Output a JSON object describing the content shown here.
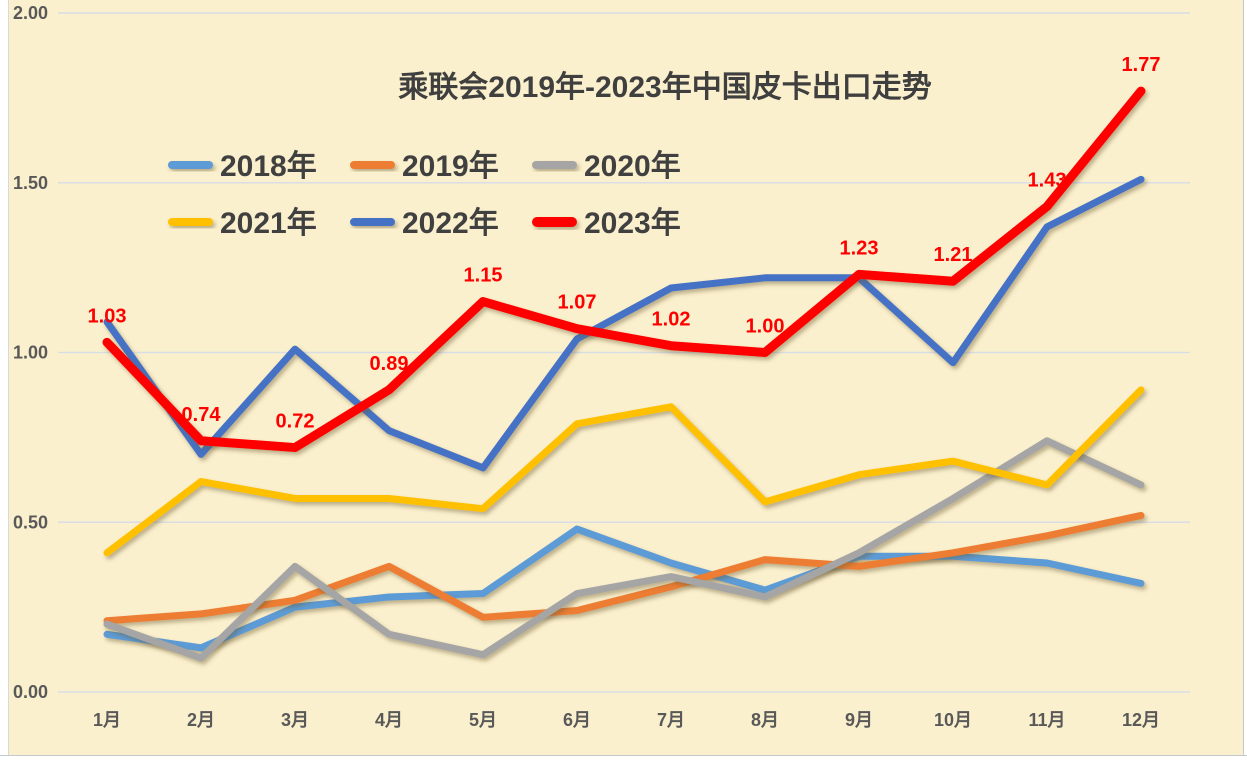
{
  "chart_data": {
    "type": "line",
    "title": "乘联会2019年-2023年中国皮卡出口走势",
    "x": [
      "1月",
      "2月",
      "3月",
      "4月",
      "5月",
      "6月",
      "7月",
      "8月",
      "9月",
      "10月",
      "11月",
      "12月"
    ],
    "yticks": [
      "2.00",
      "1.50",
      "1.00",
      "0.50",
      "0.00"
    ],
    "ylim": [
      0,
      2
    ],
    "grid": true,
    "legend_position": "upper-left-overlay-two-rows",
    "series": [
      {
        "name": "2018年",
        "color": "#5B9BD5",
        "values": [
          0.17,
          0.13,
          0.25,
          0.28,
          0.29,
          0.48,
          0.38,
          0.3,
          0.4,
          0.4,
          0.38,
          0.32
        ]
      },
      {
        "name": "2019年",
        "color": "#ED7D31",
        "values": [
          0.21,
          0.23,
          0.27,
          0.37,
          0.22,
          0.24,
          0.31,
          0.39,
          0.37,
          0.41,
          0.46,
          0.52
        ]
      },
      {
        "name": "2020年",
        "color": "#A5A5A5",
        "values": [
          0.2,
          0.1,
          0.37,
          0.17,
          0.11,
          0.29,
          0.34,
          0.28,
          0.41,
          0.57,
          0.74,
          0.61
        ]
      },
      {
        "name": "2021年",
        "color": "#FFC000",
        "values": [
          0.41,
          0.62,
          0.57,
          0.57,
          0.54,
          0.79,
          0.84,
          0.56,
          0.64,
          0.68,
          0.61,
          0.89
        ]
      },
      {
        "name": "2022年",
        "color": "#4472C4",
        "values": [
          1.09,
          0.7,
          1.01,
          0.77,
          0.66,
          1.04,
          1.19,
          1.22,
          1.22,
          0.97,
          1.37,
          1.51
        ]
      },
      {
        "name": "2023年",
        "color": "#FF0000",
        "emphasis": true,
        "show_labels": true,
        "values": [
          1.03,
          0.74,
          0.72,
          0.89,
          1.15,
          1.07,
          1.02,
          1.0,
          1.23,
          1.21,
          1.43,
          1.77
        ],
        "labels": [
          "1.03",
          "0.74",
          "0.72",
          "0.89",
          "1.15",
          "1.07",
          "1.02",
          "1.00",
          "1.23",
          "1.21",
          "1.43",
          "1.77"
        ]
      }
    ],
    "colors": {
      "plot_background": "#FBF0CD",
      "gridline": "#D8DDE6",
      "axis_text": "#595959",
      "title_text": "#3F3F3F",
      "legend_text": "#404040",
      "data_label": "#FF0000",
      "outer_margin": "#FFFFFF"
    }
  }
}
